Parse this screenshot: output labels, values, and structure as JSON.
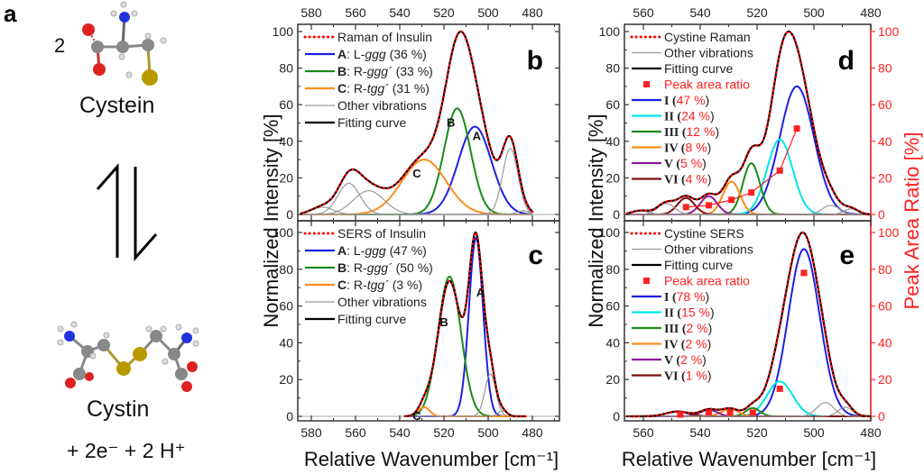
{
  "panel_a": {
    "label": "a",
    "coefficient": "2",
    "reactant": "Cysteine",
    "reactant_label": "Cystein",
    "product_label": "Cystin",
    "products_extra": "+ 2e⁻ + 2 H⁺",
    "arrow": "equilibrium-arrows"
  },
  "colors": {
    "data_dotted": "#ff0000",
    "A": "#1f1fe0",
    "B": "#1a8a1a",
    "C": "#ff8c1a",
    "other": "#999999",
    "fit": "#000000",
    "I": "#1f1fe0",
    "II": "#00e5ee",
    "III": "#1a8a1a",
    "IV": "#ff8c1a",
    "V": "#8b1a9b",
    "VI": "#7a1010",
    "ratio": "#ff2020"
  },
  "chart_data": [
    {
      "panel": "b",
      "type": "line",
      "xlabel": "Relative Wavenumber [cm⁻¹]",
      "ylabel": "Normalized Intensity [%]",
      "xlim": [
        585,
        478
      ],
      "ylim": [
        0,
        100
      ],
      "xticks": [
        580,
        560,
        540,
        520,
        500,
        480
      ],
      "yticks": [
        0,
        20,
        40,
        60,
        80,
        100
      ],
      "legend": [
        {
          "key": "data",
          "bold": "",
          "text": "Raman of Insulin",
          "style": "dotted"
        },
        {
          "key": "A",
          "bold": "A",
          "text": ": L-",
          "italic": "ggg",
          "tail": " (36 %)"
        },
        {
          "key": "B",
          "bold": "B",
          "text": ": R-",
          "italic": "ggg´",
          "tail": " (33 %)"
        },
        {
          "key": "C",
          "bold": "C",
          "text": ": R-",
          "italic": "tgg´",
          "tail": " (31 %)"
        },
        {
          "key": "other",
          "bold": "",
          "text": "Other vibrations"
        },
        {
          "key": "fit",
          "bold": "",
          "text": "Fitting curve"
        }
      ],
      "components": [
        {
          "key": "A",
          "center": 506,
          "height": 48,
          "width": 7.5,
          "annotation": "A"
        },
        {
          "key": "B",
          "center": 514,
          "height": 58,
          "width": 6.0,
          "annotation": "B"
        },
        {
          "key": "C",
          "center": 529,
          "height": 30,
          "width": 10,
          "annotation": "C"
        },
        {
          "key": "other",
          "center": 563,
          "height": 17,
          "width": 5
        },
        {
          "key": "other",
          "center": 554,
          "height": 13,
          "width": 7
        },
        {
          "key": "other",
          "center": 575,
          "height": 4,
          "width": 5
        },
        {
          "key": "other",
          "center": 490,
          "height": 36,
          "width": 3.5
        },
        {
          "key": "other",
          "center": 484,
          "height": 2,
          "width": 3
        }
      ],
      "total_peak": {
        "x": 511,
        "y": 100
      },
      "panel_label": "b"
    },
    {
      "panel": "c",
      "type": "line",
      "xlabel": "Relative Wavenumber [cm⁻¹]",
      "ylabel": "Normalized Intensity [%]",
      "xlim": [
        585,
        478
      ],
      "ylim": [
        0,
        100
      ],
      "xticks": [
        580,
        560,
        540,
        520,
        500,
        480
      ],
      "yticks": [
        0,
        20,
        40,
        60,
        80,
        100
      ],
      "data_range": [
        538,
        483
      ],
      "legend": [
        {
          "key": "data",
          "bold": "",
          "text": "SERS of Insulin",
          "style": "dotted"
        },
        {
          "key": "A",
          "bold": "A",
          "text": ": L-",
          "italic": "ggg",
          "tail": " (47 %)"
        },
        {
          "key": "B",
          "bold": "B",
          "text": ": R-",
          "italic": "ggg´",
          "tail": " (50 %)"
        },
        {
          "key": "C",
          "bold": "C",
          "text": ": R-",
          "italic": "tgg´",
          "tail": " (3 %)"
        },
        {
          "key": "other",
          "bold": "",
          "text": "Other vibrations"
        },
        {
          "key": "fit",
          "bold": "",
          "text": "Fitting curve"
        }
      ],
      "components": [
        {
          "key": "A",
          "center": 505.5,
          "height": 97,
          "width": 3.2,
          "annotation": "A"
        },
        {
          "key": "B",
          "center": 517.5,
          "height": 76,
          "width": 5.2,
          "annotation": "B"
        },
        {
          "key": "C",
          "center": 529,
          "height": 5,
          "width": 2.5,
          "annotation": "C"
        },
        {
          "key": "other",
          "center": 499,
          "height": 23,
          "width": 2.5
        },
        {
          "key": "other",
          "center": 493.5,
          "height": 3,
          "width": 2
        }
      ],
      "panel_label": "c"
    },
    {
      "panel": "d",
      "type": "line",
      "xlabel": "Relative Wavenumber [cm⁻¹]",
      "ylabel": "Normalized Intensity [%]",
      "y2label": "Peak Area Ratio [%]",
      "xlim": [
        566,
        480
      ],
      "ylim": [
        0,
        100
      ],
      "y2lim": [
        0,
        100
      ],
      "xticks": [
        560,
        540,
        520,
        500,
        480
      ],
      "yticks": [
        0,
        20,
        40,
        60,
        80,
        100
      ],
      "legend": [
        {
          "key": "data",
          "text": "Cystine Raman",
          "style": "dotted"
        },
        {
          "key": "other",
          "text": "Other vibrations"
        },
        {
          "key": "fit",
          "text": "Fitting curve"
        },
        {
          "key": "ratio",
          "text": "Peak area ratio",
          "style": "square"
        },
        {
          "key": "I",
          "roman": "I",
          "pct": "47 %"
        },
        {
          "key": "II",
          "roman": "II",
          "pct": "24 %"
        },
        {
          "key": "III",
          "roman": "III",
          "pct": "12 %"
        },
        {
          "key": "IV",
          "roman": "IV",
          "pct": "8 %"
        },
        {
          "key": "V",
          "roman": "V",
          "pct": "5 %"
        },
        {
          "key": "VI",
          "roman": "VI",
          "pct": "4 %"
        }
      ],
      "components": [
        {
          "key": "I",
          "center": 506,
          "height": 70,
          "width": 6
        },
        {
          "key": "II",
          "center": 512,
          "height": 41,
          "width": 4.5
        },
        {
          "key": "III",
          "center": 522,
          "height": 28,
          "width": 3
        },
        {
          "key": "IV",
          "center": 529,
          "height": 18,
          "width": 3
        },
        {
          "key": "V",
          "center": 537,
          "height": 10,
          "width": 3
        },
        {
          "key": "VI",
          "center": 545,
          "height": 9,
          "width": 3
        },
        {
          "key": "other",
          "center": 552,
          "height": 6,
          "width": 3
        },
        {
          "key": "other",
          "center": 561,
          "height": 2,
          "width": 3
        },
        {
          "key": "other",
          "center": 494,
          "height": 5,
          "width": 3
        },
        {
          "key": "other",
          "center": 487,
          "height": 3,
          "width": 2.5
        }
      ],
      "peak_area_ratio": {
        "x": [
          545,
          537,
          529,
          522,
          512,
          506
        ],
        "y": [
          4,
          5,
          8,
          12,
          24,
          47
        ]
      },
      "panel_label": "d"
    },
    {
      "panel": "e",
      "type": "line",
      "xlabel": "Relative Wavenumber [cm⁻¹]",
      "ylabel": "Normalized Intensity [%]",
      "y2label": "Peak Area Ratio [%]",
      "xlim": [
        566,
        480
      ],
      "ylim": [
        0,
        100
      ],
      "y2lim": [
        0,
        100
      ],
      "xticks": [
        560,
        540,
        520,
        500,
        480
      ],
      "yticks": [
        0,
        20,
        40,
        60,
        80,
        100
      ],
      "legend": [
        {
          "key": "data",
          "text": "Cystine SERS",
          "style": "dotted"
        },
        {
          "key": "other",
          "text": "Other vibrations"
        },
        {
          "key": "fit",
          "text": "Fitting curve"
        },
        {
          "key": "ratio",
          "text": "Peak area ratio",
          "style": "square"
        },
        {
          "key": "I",
          "roman": "I",
          "pct": "78 %"
        },
        {
          "key": "II",
          "roman": "II",
          "pct": "15 %"
        },
        {
          "key": "III",
          "roman": "III",
          "pct": "2 %"
        },
        {
          "key": "IV",
          "roman": "IV",
          "pct": "2 %"
        },
        {
          "key": "V",
          "roman": "V",
          "pct": "2 %"
        },
        {
          "key": "VI",
          "roman": "VI",
          "pct": "1 %"
        }
      ],
      "components": [
        {
          "key": "I",
          "center": 503.5,
          "height": 91,
          "width": 5.5
        },
        {
          "key": "II",
          "center": 512,
          "height": 19,
          "width": 4.5
        },
        {
          "key": "III",
          "center": 521.5,
          "height": 4.5,
          "width": 2.5
        },
        {
          "key": "IV",
          "center": 529.5,
          "height": 4,
          "width": 3
        },
        {
          "key": "V",
          "center": 537,
          "height": 3.5,
          "width": 3
        },
        {
          "key": "VI",
          "center": 548,
          "height": 2.5,
          "width": 4
        },
        {
          "key": "other",
          "center": 496,
          "height": 7.5,
          "width": 3
        },
        {
          "key": "other",
          "center": 489,
          "height": 5,
          "width": 2.5
        }
      ],
      "peak_area_ratio": {
        "x": [
          547,
          537,
          529.5,
          521.5,
          512,
          503.5
        ],
        "y": [
          1,
          2,
          2,
          2,
          15,
          78
        ]
      },
      "panel_label": "e"
    }
  ]
}
